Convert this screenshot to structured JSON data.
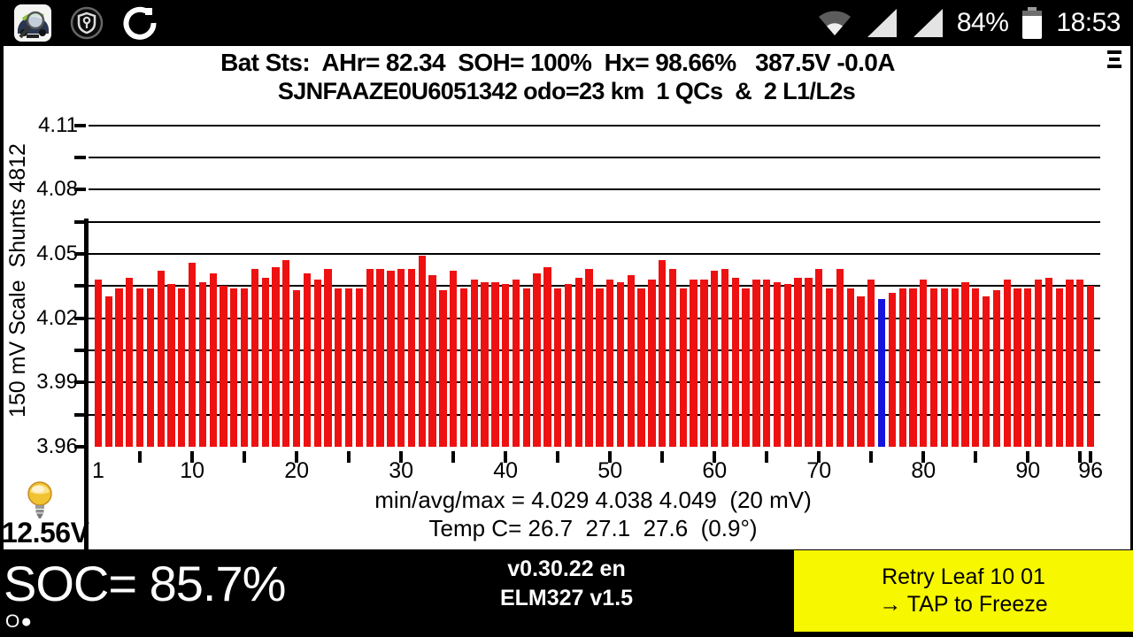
{
  "status_bar": {
    "battery_percent": "84%",
    "time": "18:53",
    "icons": [
      "leafspy-app-icon",
      "vpn-shield-key-icon",
      "sync-refresh-icon",
      "wifi-icon",
      "signal-triangle-icon",
      "signal-triangle-icon",
      "battery-icon"
    ]
  },
  "header": {
    "line1": "Bat Sts:  AHr= 82.34  SOH= 100%  Hx= 98.66%   387.5V -0.0A",
    "line2": "SJNFAAZE0U6051342 odo=23 km  1 QCs  &  2 L1/L2s"
  },
  "chart_data": {
    "type": "bar",
    "title": "",
    "ylabel": "150 mV Scale  Shunts 4812",
    "xlabel": "",
    "ylim": [
      3.96,
      4.11
    ],
    "ytick_major": [
      4.11,
      4.08,
      4.05,
      4.02,
      3.99,
      3.96
    ],
    "ytick_minor_step": 0.015,
    "grid": "solid horizontal every 0.015 V",
    "legend": "none",
    "cells": 96,
    "xtick_label_cells": [
      1,
      10,
      20,
      30,
      40,
      50,
      60,
      70,
      80,
      90,
      96
    ],
    "xtick_labels": [
      "1",
      "10",
      "20",
      "30",
      "40",
      "50",
      "60",
      "70",
      "80",
      "90",
      "96"
    ],
    "bar_color": "#ee1111",
    "highlight_color": "#1414dd",
    "highlight_cell": 76,
    "values": [
      4.038,
      4.03,
      4.034,
      4.039,
      4.034,
      4.034,
      4.042,
      4.036,
      4.034,
      4.046,
      4.037,
      4.041,
      4.035,
      4.034,
      4.034,
      4.043,
      4.039,
      4.044,
      4.047,
      4.033,
      4.041,
      4.038,
      4.043,
      4.034,
      4.034,
      4.034,
      4.043,
      4.043,
      4.042,
      4.043,
      4.043,
      4.049,
      4.04,
      4.033,
      4.042,
      4.034,
      4.038,
      4.037,
      4.037,
      4.036,
      4.038,
      4.034,
      4.041,
      4.044,
      4.034,
      4.036,
      4.039,
      4.043,
      4.034,
      4.038,
      4.037,
      4.04,
      4.034,
      4.038,
      4.047,
      4.043,
      4.034,
      4.038,
      4.038,
      4.042,
      4.043,
      4.039,
      4.034,
      4.038,
      4.038,
      4.037,
      4.036,
      4.039,
      4.039,
      4.043,
      4.034,
      4.043,
      4.034,
      4.03,
      4.038,
      4.029,
      4.032,
      4.034,
      4.034,
      4.038,
      4.034,
      4.034,
      4.034,
      4.037,
      4.034,
      4.03,
      4.033,
      4.038,
      4.034,
      4.034,
      4.038,
      4.039,
      4.034,
      4.038,
      4.038,
      4.035
    ]
  },
  "chart_footer": {
    "line1": "min/avg/max = 4.029 4.038 4.049  (20 mV)",
    "line2": "Temp C= 26.7  27.1  27.6  (0.9°)"
  },
  "aux_battery": {
    "voltage": "12.56V"
  },
  "bottom_bar": {
    "soc": "SOC= 85.7%",
    "page_indicator": "O●",
    "version_line1": "v0.30.22 en",
    "version_line2": "ELM327 v1.5",
    "action_button": {
      "line1": "Retry Leaf 10 01",
      "line2": "→ TAP to Freeze",
      "bg": "#f7f700"
    }
  }
}
